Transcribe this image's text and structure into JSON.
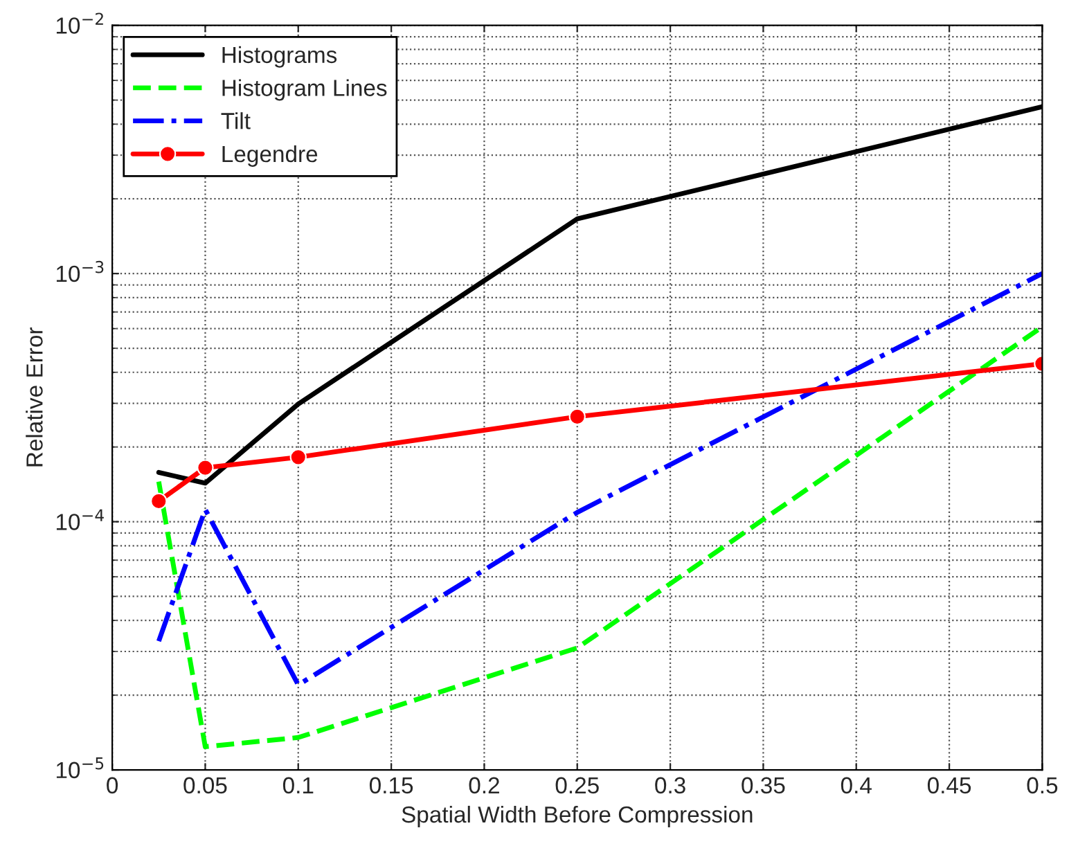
{
  "chart_data": {
    "type": "line",
    "xlabel": "Spatial Width Before Compression",
    "ylabel": "Relative Error",
    "log": "y",
    "grid": true,
    "legend": "top left",
    "x": [
      0.025,
      0.05,
      0.1,
      0.25,
      0.5
    ],
    "xlim": [
      0,
      0.5
    ],
    "xticks": [
      0,
      0.05,
      0.1,
      0.15,
      0.2,
      0.25,
      0.3,
      0.35,
      0.4,
      0.45,
      0.5
    ],
    "ylim": [
      1e-05,
      0.01
    ],
    "yticks": [
      {
        "value": 1e-05,
        "label": "10$^{−5}$"
      },
      {
        "value": 0.0001,
        "label": "10$^{−4}$"
      },
      {
        "value": 0.001,
        "label": "10$^{−3}$"
      },
      {
        "value": 0.01,
        "label": "10$^{−2}$"
      }
    ],
    "series": [
      {
        "name": "Histograms",
        "color": "#000000",
        "line_style": "solid",
        "marker": "none",
        "values": [
          0.000158,
          0.000143,
          0.000298,
          0.00166,
          0.0047
        ]
      },
      {
        "name": "Histogram Lines",
        "color": "#00ff00",
        "line_style": "dashed",
        "marker": "none",
        "values": [
          0.000145,
          1.24e-05,
          1.35e-05,
          3.1e-05,
          0.00061
        ]
      },
      {
        "name": "Tilt",
        "color": "#0000ff",
        "line_style": "dashdot",
        "marker": "none",
        "values": [
          3.3e-05,
          0.000112,
          2.2e-05,
          0.000109,
          0.001
        ]
      },
      {
        "name": "Legendre",
        "color": "#ff0000",
        "line_style": "solid",
        "marker": "circle",
        "values": [
          0.000121,
          0.000165,
          0.000182,
          0.000265,
          0.000433
        ]
      }
    ]
  }
}
